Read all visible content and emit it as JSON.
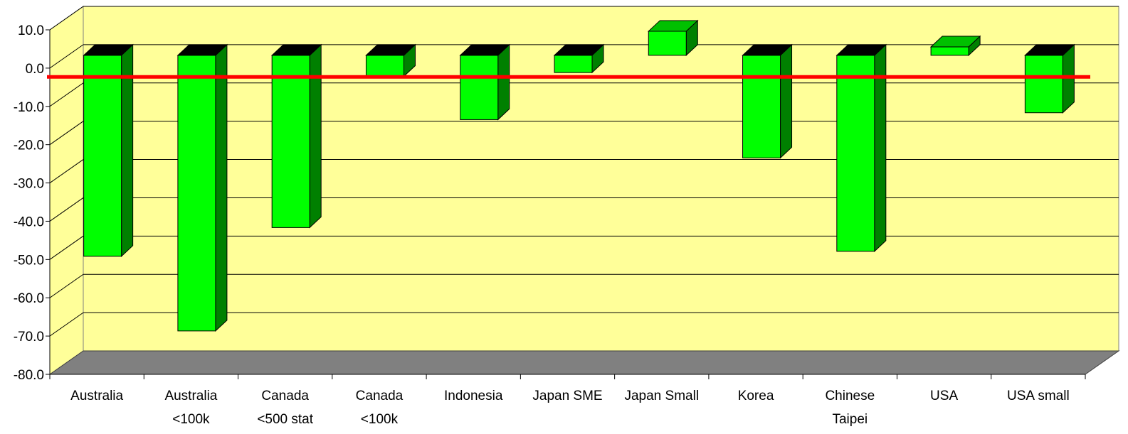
{
  "chart_data": {
    "type": "bar",
    "categories": [
      [
        "Australia"
      ],
      [
        "Australia",
        "<100k"
      ],
      [
        "Canada",
        "<500 stat"
      ],
      [
        "Canada",
        "<100k"
      ],
      [
        "Indonesia"
      ],
      [
        "Japan SME"
      ],
      [
        "Japan Small"
      ],
      [
        "Korea"
      ],
      [
        "Chinese",
        "Taipei"
      ],
      [
        "USA"
      ],
      [
        "USA small"
      ]
    ],
    "values": [
      -52.5,
      -72.0,
      -45.0,
      -5.5,
      -16.8,
      -4.5,
      6.3,
      -26.8,
      -51.2,
      2.2,
      -15.0
    ],
    "y_ticks": [
      "10.0",
      "0.0",
      "-10.0",
      "-20.0",
      "-30.0",
      "-40.0",
      "-50.0",
      "-60.0",
      "-70.0",
      "-80.0"
    ],
    "ylim": [
      -80,
      10
    ],
    "reference_line": -2.3,
    "grid": true,
    "colors": {
      "plot_wall": "#ffff99",
      "floor": "#808080",
      "bar_front": "#00ff00",
      "bar_side": "#008000",
      "bar_top": "#000000",
      "bar_top_positive": "#00c000",
      "reference_line": "#ff0000"
    }
  }
}
